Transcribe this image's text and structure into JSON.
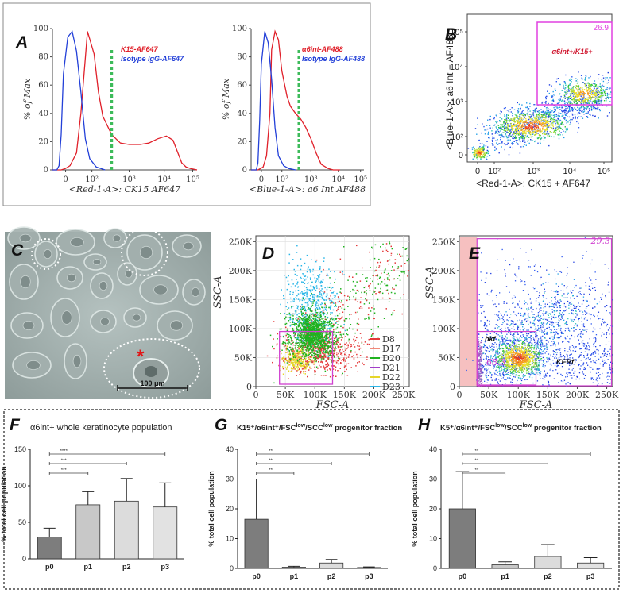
{
  "chart_data": [
    {
      "id": "A1",
      "panel": "A",
      "type": "line",
      "ylabel": "% of Max",
      "xlabel": "<Red-1-A>: CK15 AF647",
      "xticks": [
        "0",
        "10²",
        "10³",
        "10⁴",
        "10⁵"
      ],
      "yticks": [
        "0",
        "20",
        "40",
        "60",
        "80",
        "100"
      ],
      "ylim": [
        0,
        100
      ],
      "series": [
        {
          "name": "K15-AF647",
          "color": "#e0202a",
          "x": [
            0.0,
            0.1,
            0.2,
            0.3,
            0.4,
            0.55,
            0.65,
            0.8,
            0.95,
            1.05,
            1.15,
            1.35,
            1.55,
            1.75,
            2.0,
            2.2,
            2.4,
            2.6,
            2.75,
            2.85,
            2.95,
            3.05,
            3.15,
            3.3
          ],
          "y": [
            0,
            0,
            0,
            1,
            3,
            12,
            40,
            98,
            82,
            55,
            38,
            25,
            19,
            18,
            18,
            19,
            22,
            24,
            21,
            13,
            5,
            2,
            1,
            0
          ]
        },
        {
          "name": "Isotype IgG-AF647",
          "color": "#2340d8",
          "x": [
            0.0,
            0.1,
            0.15,
            0.2,
            0.25,
            0.35,
            0.45,
            0.55,
            0.65,
            0.75,
            0.85,
            1.0,
            1.2
          ],
          "y": [
            0,
            0,
            3,
            25,
            68,
            94,
            98,
            84,
            55,
            22,
            8,
            2,
            0
          ]
        }
      ]
    },
    {
      "id": "A2",
      "panel": "A",
      "type": "line",
      "ylabel": "% of Max",
      "xlabel": "<Blue-1-A>: a6 Int AF488",
      "xticks": [
        "0",
        "10²",
        "10³",
        "10⁴",
        "10⁵"
      ],
      "yticks": [
        "0",
        "20",
        "40",
        "60",
        "80",
        "100"
      ],
      "ylim": [
        0,
        100
      ],
      "series": [
        {
          "name": "α6int-AF488",
          "color": "#e0202a",
          "x": [
            0.0,
            0.2,
            0.35,
            0.45,
            0.55,
            0.6,
            0.7,
            0.8,
            0.9,
            1.05,
            1.15,
            1.3,
            1.45,
            1.6,
            1.75,
            1.9,
            2.05,
            2.25,
            2.4,
            2.6
          ],
          "y": [
            0,
            0,
            2,
            10,
            40,
            85,
            98,
            92,
            70,
            52,
            45,
            40,
            36,
            30,
            22,
            12,
            4,
            1,
            0,
            0
          ]
        },
        {
          "name": "Isotype IgG-AF488",
          "color": "#2340d8",
          "x": [
            0.0,
            0.15,
            0.2,
            0.25,
            0.3,
            0.4,
            0.5,
            0.6,
            0.7,
            0.8,
            0.95,
            1.1,
            1.3
          ],
          "y": [
            0,
            0,
            5,
            35,
            75,
            98,
            90,
            64,
            30,
            10,
            3,
            1,
            0
          ]
        }
      ]
    },
    {
      "id": "B",
      "panel": "B",
      "type": "scatter",
      "xlabel": "<Red-1-A>: CK15 + AF647",
      "ylabel": "<Blue-1-A>: a6 Int + AF488",
      "xticks": [
        "0",
        "10²",
        "10³",
        "10⁴",
        "10⁵"
      ],
      "yticks": [
        "0",
        "10²",
        "10³",
        "10⁴",
        "10⁵"
      ],
      "gate": {
        "label": "α6int+/K15+",
        "percent": "26.9",
        "color": "#e040e0"
      }
    },
    {
      "id": "D",
      "panel": "D",
      "type": "scatter",
      "xlabel": "FSC-A",
      "ylabel": "SSC-A",
      "xticks": [
        "0",
        "50K",
        "100K",
        "150K",
        "200K",
        "250K"
      ],
      "yticks": [
        "0",
        "50K",
        "100K",
        "150K",
        "200K",
        "250K"
      ],
      "legend": [
        {
          "name": "D8",
          "color": "#e43a3a"
        },
        {
          "name": "D17",
          "color": "#f08a7a"
        },
        {
          "name": "D20",
          "color": "#1fb21f"
        },
        {
          "name": "D21",
          "color": "#a23ec8"
        },
        {
          "name": "D22",
          "color": "#e6d629"
        },
        {
          "name": "D23",
          "color": "#2ab6e8"
        }
      ],
      "legend_position": "right"
    },
    {
      "id": "E",
      "panel": "E",
      "type": "scatter",
      "xlabel": "FSC-A",
      "ylabel": "SSC-A",
      "xticks": [
        "0",
        "50K",
        "100K",
        "150K",
        "200K",
        "250K"
      ],
      "yticks": [
        "0",
        "50K",
        "100K",
        "150K",
        "200K",
        "250K"
      ],
      "gates": [
        {
          "label": "",
          "percent": "29.3"
        },
        {
          "label": "bkf",
          "percent": "68.3"
        },
        {
          "label": "KERf",
          "percent": ""
        }
      ]
    },
    {
      "id": "F",
      "panel": "F",
      "type": "bar",
      "title": "α6int+ whole keratinocyte population",
      "ylabel": "% total cell population",
      "categories": [
        "p0",
        "p1",
        "p2",
        "p3"
      ],
      "values": [
        30,
        74,
        79,
        71
      ],
      "errors": [
        12,
        18,
        31,
        33
      ],
      "ylim": [
        0,
        150
      ],
      "yticks": [
        "0",
        "50",
        "100",
        "150"
      ],
      "significance": [
        "***",
        "***",
        "****"
      ]
    },
    {
      "id": "G",
      "panel": "G",
      "type": "bar",
      "title": "K15⁺/α6int⁺/FSC^low/SCC^low progenitor fraction",
      "ylabel": "% total cell population",
      "categories": [
        "p0",
        "p1",
        "p2",
        "p3"
      ],
      "values": [
        16.5,
        0.4,
        1.8,
        0.3
      ],
      "errors": [
        13.5,
        0.3,
        1.2,
        0.2
      ],
      "ylim": [
        0,
        40
      ],
      "yticks": [
        "0",
        "10",
        "20",
        "30",
        "40"
      ],
      "significance": [
        "**",
        "**",
        "**"
      ]
    },
    {
      "id": "H",
      "panel": "H",
      "type": "bar",
      "title": "K5⁺/α6int⁺/FSC^low/SCC^low progenitor fraction",
      "ylabel": "% total cell population",
      "categories": [
        "p0",
        "p1",
        "p2",
        "p3"
      ],
      "values": [
        20,
        1.2,
        4,
        1.8
      ],
      "errors": [
        12.5,
        1,
        4,
        1.8
      ],
      "ylim": [
        0,
        40
      ],
      "yticks": [
        "0",
        "10",
        "20",
        "30",
        "40"
      ],
      "significance": [
        "**",
        "**",
        "**"
      ]
    }
  ],
  "panels": {
    "A": "A",
    "B": "B",
    "C": "C",
    "D": "D",
    "E": "E",
    "F": "F",
    "G": "G",
    "H": "H"
  },
  "microscopy": {
    "scale_bar": "100 μm",
    "marker": "*",
    "marker_color": "#e01818"
  },
  "text": {
    "F_title": "α6int+ whole keratinocyte population",
    "G_title": "K15⁺/α6int⁺/FSC",
    "G_low1": "low",
    "G_mid": "/SCC",
    "G_low2": "low",
    "G_end": " progenitor fraction",
    "H_title": "K5⁺/α6int⁺/FSC",
    "H_low1": "low",
    "H_mid": "/SCC",
    "H_low2": "low",
    "H_end": " progenitor fraction"
  }
}
